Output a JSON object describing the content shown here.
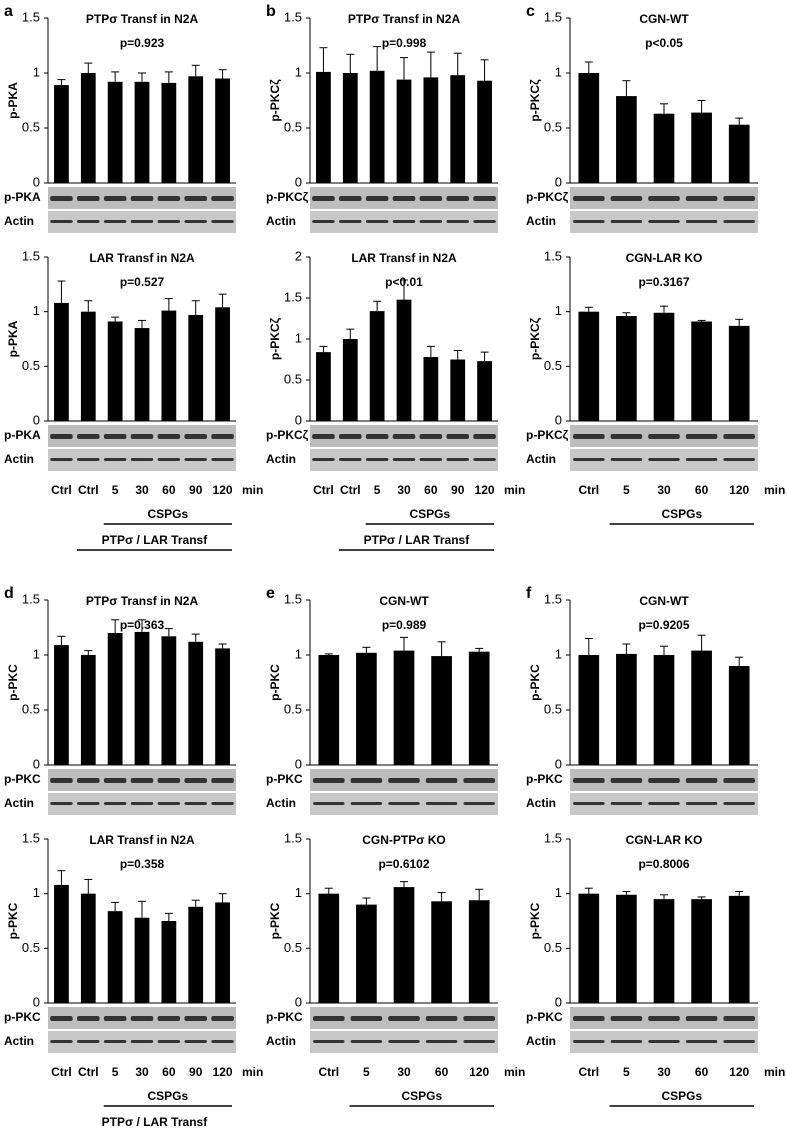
{
  "chart_data": [
    {
      "type": "bar",
      "panel": "a",
      "title": "PTPσ Transf in N2A",
      "annotation": "p=0.923",
      "ylabel": "p-PKA",
      "ylim": [
        0,
        1.5
      ],
      "yticks": [
        0,
        0.5,
        1,
        1.5
      ],
      "color": "#000000",
      "categories": [
        null,
        null,
        null,
        null,
        null,
        null,
        null
      ],
      "values": [
        0.89,
        1.0,
        0.92,
        0.92,
        0.91,
        0.97,
        0.95
      ],
      "errors": [
        0.05,
        0.09,
        0.09,
        0.08,
        0.1,
        0.1,
        0.08
      ],
      "blots": [
        "p-PKA",
        "Actin"
      ]
    },
    {
      "type": "bar",
      "title": "LAR Transf in N2A",
      "annotation": "p=0.527",
      "ylabel": "p-PKA",
      "ylim": [
        0,
        1.5
      ],
      "yticks": [
        0,
        0.5,
        1,
        1.5
      ],
      "color": "#000000",
      "categories": [
        "Ctrl",
        "Ctrl",
        "5",
        "30",
        "60",
        "90",
        "120"
      ],
      "values": [
        1.08,
        1.0,
        0.91,
        0.85,
        1.01,
        0.97,
        1.04
      ],
      "errors": [
        0.2,
        0.1,
        0.04,
        0.07,
        0.11,
        0.13,
        0.12
      ],
      "blots": [
        "p-PKA",
        "Actin"
      ],
      "x_unit": "min",
      "groups": [
        "CSPGs",
        "PTPσ / LAR Transf"
      ]
    },
    {
      "type": "bar",
      "panel": "b",
      "title": "PTPσ Transf in N2A",
      "annotation": "p=0.998",
      "ylabel": "p-PKCζ",
      "ylim": [
        0,
        1.5
      ],
      "yticks": [
        0,
        0.5,
        1,
        1.5
      ],
      "color": "#000000",
      "categories": [
        null,
        null,
        null,
        null,
        null,
        null,
        null
      ],
      "values": [
        1.01,
        1.0,
        1.02,
        0.94,
        0.96,
        0.98,
        0.93
      ],
      "errors": [
        0.22,
        0.17,
        0.22,
        0.2,
        0.23,
        0.2,
        0.19
      ],
      "blots": [
        "p-PKCζ",
        "Actin"
      ]
    },
    {
      "type": "bar",
      "title": "LAR Transf in N2A",
      "annotation": "p<0.01",
      "ylabel": "p-PKCζ",
      "ylim": [
        0,
        2
      ],
      "yticks": [
        0,
        0.5,
        1,
        1.5,
        2
      ],
      "color": "#000000",
      "categories": [
        "Ctrl",
        "Ctrl",
        "5",
        "30",
        "60",
        "90",
        "120"
      ],
      "values": [
        0.84,
        1.0,
        1.34,
        1.48,
        0.78,
        0.75,
        0.73
      ],
      "errors": [
        0.07,
        0.12,
        0.12,
        0.24,
        0.13,
        0.11,
        0.11
      ],
      "blots": [
        "p-PKCζ",
        "Actin"
      ],
      "x_unit": "min",
      "groups": [
        "CSPGs",
        "PTPσ / LAR Transf"
      ]
    },
    {
      "type": "bar",
      "panel": "c",
      "title": "CGN-WT",
      "annotation": "p<0.05",
      "ylabel": "p-PKCζ",
      "ylim": [
        0,
        1.5
      ],
      "yticks": [
        0,
        0.5,
        1,
        1.5
      ],
      "color": "#000000",
      "categories": [
        null,
        null,
        null,
        null,
        null
      ],
      "values": [
        1.0,
        0.79,
        0.63,
        0.64,
        0.53
      ],
      "errors": [
        0.1,
        0.14,
        0.09,
        0.11,
        0.06
      ],
      "blots": [
        "p-PKCζ",
        "Actin"
      ]
    },
    {
      "type": "bar",
      "title": "CGN-LAR KO",
      "annotation": "p=0.3167",
      "ylabel": "p-PKCζ",
      "ylim": [
        0,
        1.5
      ],
      "yticks": [
        0,
        0.5,
        1,
        1.5
      ],
      "color": "#000000",
      "categories": [
        "Ctrl",
        "5",
        "30",
        "60",
        "120"
      ],
      "values": [
        1.0,
        0.96,
        0.99,
        0.91,
        0.87
      ],
      "errors": [
        0.04,
        0.03,
        0.06,
        0.01,
        0.06
      ],
      "blots": [
        "p-PKCζ",
        "Actin"
      ],
      "x_unit": "min",
      "groups": [
        "CSPGs"
      ]
    },
    {
      "type": "bar",
      "panel": "d",
      "title": "PTPσ Transf in N2A",
      "annotation": "p=0.363",
      "ylabel": "p-PKC",
      "ylim": [
        0,
        1.5
      ],
      "yticks": [
        0,
        0.5,
        1,
        1.5
      ],
      "color": "#000000",
      "categories": [
        null,
        null,
        null,
        null,
        null,
        null,
        null
      ],
      "values": [
        1.09,
        1.0,
        1.2,
        1.21,
        1.17,
        1.12,
        1.06
      ],
      "errors": [
        0.08,
        0.04,
        0.12,
        0.11,
        0.07,
        0.07,
        0.04
      ],
      "blots": [
        "p-PKC",
        "Actin"
      ]
    },
    {
      "type": "bar",
      "title": "LAR Transf in N2A",
      "annotation": "p=0.358",
      "ylabel": "p-PKC",
      "ylim": [
        0,
        1.5
      ],
      "yticks": [
        0,
        0.5,
        1,
        1.5
      ],
      "color": "#000000",
      "categories": [
        "Ctrl",
        "Ctrl",
        "5",
        "30",
        "60",
        "90",
        "120"
      ],
      "values": [
        1.08,
        1.0,
        0.84,
        0.78,
        0.75,
        0.88,
        0.92
      ],
      "errors": [
        0.13,
        0.13,
        0.08,
        0.15,
        0.07,
        0.06,
        0.08
      ],
      "blots": [
        "p-PKC",
        "Actin"
      ],
      "x_unit": "min",
      "groups": [
        "CSPGs",
        "PTPσ / LAR Transf"
      ]
    },
    {
      "type": "bar",
      "panel": "e",
      "title": "CGN-WT",
      "annotation": "p=0.989",
      "ylabel": "p-PKC",
      "ylim": [
        0,
        1.5
      ],
      "yticks": [
        0,
        0.5,
        1,
        1.5
      ],
      "color": "#000000",
      "categories": [
        null,
        null,
        null,
        null,
        null
      ],
      "values": [
        1.0,
        1.02,
        1.04,
        0.99,
        1.03
      ],
      "errors": [
        0.01,
        0.05,
        0.12,
        0.13,
        0.03
      ],
      "blots": [
        "p-PKC",
        "Actin"
      ]
    },
    {
      "type": "bar",
      "title": "CGN-PTPσ KO",
      "annotation": "p=0.6102",
      "ylabel": "p-PKC",
      "ylim": [
        0,
        1.5
      ],
      "yticks": [
        0,
        0.5,
        1,
        1.5
      ],
      "color": "#000000",
      "categories": [
        "Ctrl",
        "5",
        "30",
        "60",
        "120"
      ],
      "values": [
        1.0,
        0.9,
        1.06,
        0.93,
        0.94
      ],
      "errors": [
        0.05,
        0.06,
        0.05,
        0.08,
        0.1
      ],
      "blots": [
        "p-PKC",
        "Actin"
      ],
      "x_unit": "min",
      "groups": [
        "CSPGs"
      ]
    },
    {
      "type": "bar",
      "panel": "f",
      "title": "CGN-WT",
      "annotation": "p=0.9205",
      "ylabel": "p-PKC",
      "ylim": [
        0,
        1.5
      ],
      "yticks": [
        0,
        0.5,
        1,
        1.5
      ],
      "color": "#000000",
      "categories": [
        null,
        null,
        null,
        null,
        null
      ],
      "values": [
        1.0,
        1.01,
        1.0,
        1.04,
        0.9
      ],
      "errors": [
        0.15,
        0.09,
        0.08,
        0.14,
        0.08
      ],
      "blots": [
        "p-PKC",
        "Actin"
      ]
    },
    {
      "type": "bar",
      "title": "CGN-LAR KO",
      "annotation": "p=0.8006",
      "ylabel": "p-PKC",
      "ylim": [
        0,
        1.5
      ],
      "yticks": [
        0,
        0.5,
        1,
        1.5
      ],
      "color": "#000000",
      "categories": [
        "Ctrl",
        "5",
        "30",
        "60",
        "120"
      ],
      "values": [
        1.0,
        0.99,
        0.95,
        0.95,
        0.98
      ],
      "errors": [
        0.05,
        0.03,
        0.04,
        0.02,
        0.04
      ],
      "blots": [
        "p-PKC",
        "Actin"
      ],
      "x_unit": "min",
      "groups": [
        "CSPGs"
      ]
    }
  ]
}
